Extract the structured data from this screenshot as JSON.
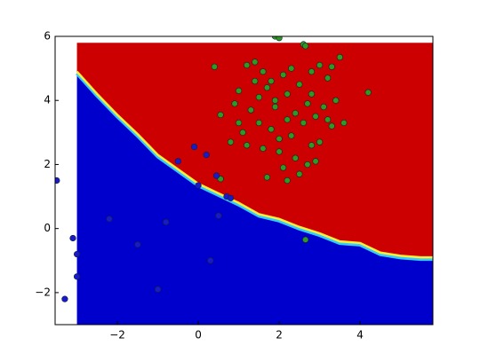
{
  "chart_data": {
    "type": "scatter",
    "xlim": [
      -3.54,
      5.8
    ],
    "ylim": [
      -3,
      6
    ],
    "xticks": [
      {
        "value": -2,
        "label": "−2"
      },
      0,
      2,
      4
    ],
    "yticks": [
      {
        "value": -2,
        "label": "−2"
      },
      0,
      2,
      4,
      6
    ],
    "decision_region": {
      "xlim": [
        -3.0,
        5.8
      ],
      "ylim": [
        -3,
        5.8
      ],
      "colors": [
        "#cc0000",
        "#0000cc"
      ]
    },
    "decision_boundary": {
      "x": [
        -3.0,
        -2.5,
        -2.0,
        -1.5,
        -1.0,
        -0.5,
        0,
        0.5,
        1.0,
        1.5,
        2.0,
        2.5,
        3.0,
        3.5,
        4.0,
        4.5,
        5.0,
        5.5,
        5.8
      ],
      "y": [
        4.9,
        4.2,
        3.55,
        2.95,
        2.3,
        1.85,
        1.4,
        1.1,
        0.8,
        0.45,
        0.3,
        0.05,
        -0.15,
        -0.4,
        -0.45,
        -0.75,
        -0.85,
        -0.9,
        -0.9
      ]
    },
    "series": [
      {
        "color": "#2e9a22",
        "x": [
          0.4,
          1.9,
          2.0,
          2.6,
          2.65,
          4.2,
          2.65,
          0.55,
          0.55,
          1.7,
          2.2,
          3.5,
          1.2,
          1.4,
          1.6,
          1.8,
          2.1,
          2.3,
          2.5,
          2.8,
          3.0,
          3.2,
          1.0,
          0.9,
          1.3,
          1.5,
          1.7,
          1.9,
          2.2,
          2.4,
          2.7,
          2.9,
          3.1,
          3.3,
          3.4,
          1.1,
          1.5,
          1.8,
          2.0,
          2.3,
          2.6,
          2.8,
          3.0,
          1.6,
          2.0,
          2.4,
          2.7,
          3.2,
          0.8,
          1.2,
          1.4,
          2.1,
          2.5,
          2.9,
          3.6,
          1.9,
          2.2,
          1.0,
          2.8,
          3.3
        ],
        "y": [
          5.05,
          6.0,
          5.95,
          5.75,
          5.7,
          4.25,
          -0.35,
          1.55,
          3.55,
          1.6,
          1.5,
          5.35,
          5.1,
          5.2,
          4.9,
          4.6,
          4.8,
          5.0,
          4.5,
          4.2,
          5.1,
          4.7,
          4.3,
          3.9,
          3.7,
          4.1,
          4.4,
          3.8,
          4.2,
          3.6,
          3.9,
          3.5,
          3.8,
          3.2,
          4.0,
          3.0,
          3.3,
          3.1,
          2.8,
          2.9,
          3.3,
          2.6,
          2.7,
          2.5,
          2.4,
          2.2,
          2.0,
          3.4,
          2.7,
          2.6,
          4.6,
          1.9,
          1.7,
          2.1,
          3.3,
          4.0,
          3.4,
          3.3,
          4.9,
          5.05
        ]
      },
      {
        "color": "#1a1acc",
        "x": [
          -3.5,
          -3.1,
          -3.0,
          -3.0,
          -3.3,
          -0.5,
          -0.1,
          0.2,
          0.45,
          0.0,
          0.7,
          0.8,
          -1.5,
          -0.8,
          0.3,
          -2.2,
          -1.0,
          0.5
        ],
        "y": [
          1.5,
          -0.3,
          -0.8,
          -1.5,
          -2.2,
          2.1,
          2.55,
          2.3,
          1.65,
          1.35,
          1.0,
          0.95,
          -0.5,
          0.2,
          -1.0,
          0.3,
          -1.9,
          0.4
        ]
      }
    ]
  }
}
